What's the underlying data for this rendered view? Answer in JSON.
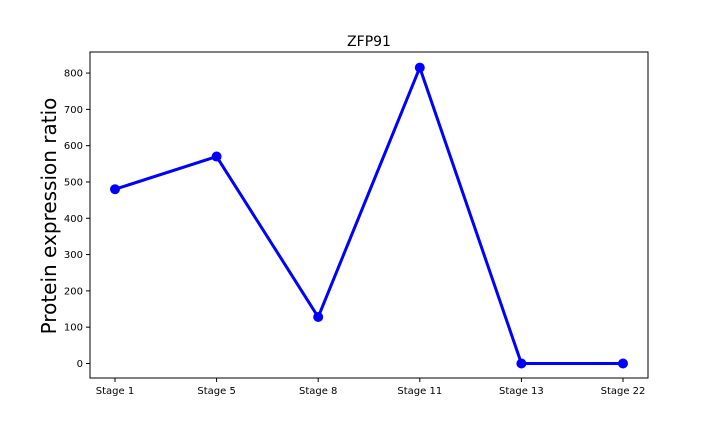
{
  "chart_data": {
    "type": "line",
    "title": "ZFP91",
    "xlabel": "",
    "ylabel": "Protein expression ratio",
    "categories": [
      "Stage 1",
      "Stage 5",
      "Stage 8",
      "Stage 11",
      "Stage 13",
      "Stage 22"
    ],
    "series": [
      {
        "values": [
          480,
          570,
          128,
          815,
          0,
          0
        ]
      }
    ],
    "ylim": [
      -40,
      858
    ],
    "yticks": [
      0,
      100,
      200,
      300,
      400,
      500,
      600,
      700,
      800
    ],
    "grid": false,
    "colors": {
      "line": "#0000ff",
      "marker": "#0000ff",
      "axes": "#000000"
    }
  }
}
